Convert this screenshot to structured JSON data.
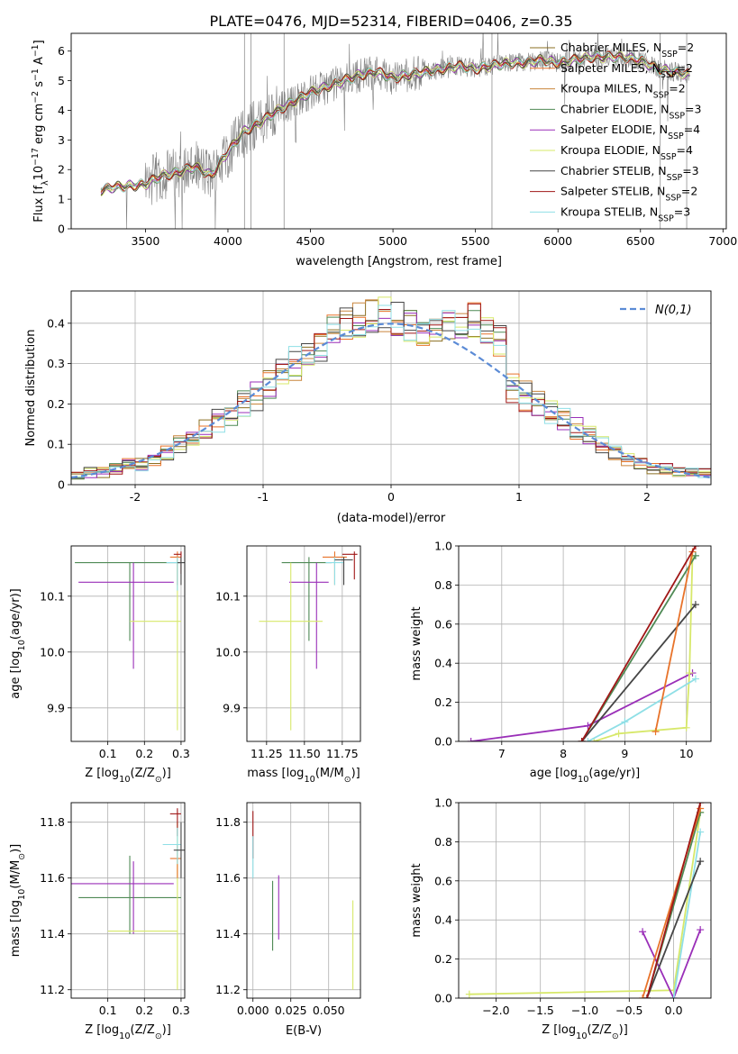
{
  "title": "PLATE=0476, MJD=52314, FIBERID=0406, z=0.35",
  "colors": {
    "c0": "#8b6f22",
    "c1": "#e8732a",
    "c2": "#c9853c",
    "c3": "#4f8a55",
    "c4": "#9a2fb8",
    "c5": "#d7e86a",
    "c6": "#454545",
    "c7": "#a01717",
    "c8": "#8fdfe6",
    "obs": "#808080",
    "normal": "#5b8bd6"
  },
  "chart_data": [
    {
      "type": "line",
      "name": "spectrum",
      "xlabel": "wavelength [Angstrom, rest frame]",
      "ylabel": "Flux [f",
      "xlim": [
        3050,
        7020
      ],
      "ylim": [
        0,
        6.6
      ],
      "xticks": [
        3500,
        4000,
        4500,
        5000,
        5500,
        6000,
        6500,
        7000
      ],
      "yticks": [
        0,
        1,
        2,
        3,
        4,
        5,
        6
      ],
      "legend": [
        {
          "label": "Chabrier MILES, N",
          "n": "2"
        },
        {
          "label": "Salpeter MILES, N",
          "n": "2"
        },
        {
          "label": "Kroupa MILES, N",
          "n": "2"
        },
        {
          "label": "Chabrier ELODIE, N",
          "n": "3"
        },
        {
          "label": "Salpeter ELODIE, N",
          "n": "4"
        },
        {
          "label": "Kroupa ELODIE, N",
          "n": "4"
        },
        {
          "label": "Chabrier STELIB, N",
          "n": "3"
        },
        {
          "label": "Salpeter STELIB, N",
          "n": "2"
        },
        {
          "label": "Kroupa STELIB, N",
          "n": "3"
        }
      ],
      "continuum": {
        "x": [
          3230,
          3300,
          3400,
          3500,
          3600,
          3700,
          3800,
          3900,
          4000,
          4100,
          4200,
          4300,
          4400,
          4500,
          4600,
          4700,
          4800,
          4900,
          5000,
          5100,
          5200,
          5300,
          5400,
          5500,
          5600,
          5700,
          5800,
          5900,
          6000,
          6100,
          6200,
          6300,
          6400,
          6500,
          6600,
          6700,
          6800
        ],
        "y": [
          1.3,
          1.4,
          1.45,
          1.5,
          1.8,
          1.9,
          2.1,
          1.8,
          2.6,
          3.3,
          3.6,
          4.0,
          4.3,
          4.6,
          4.8,
          5.0,
          5.2,
          5.3,
          5.1,
          5.2,
          5.3,
          5.4,
          5.5,
          5.4,
          5.5,
          5.6,
          5.6,
          5.7,
          5.6,
          5.7,
          5.8,
          5.8,
          5.8,
          5.7,
          5.4,
          5.3,
          5.2
        ]
      }
    },
    {
      "type": "step",
      "name": "residuals",
      "xlabel": "(data-model)/error",
      "ylabel": "Normed distribution",
      "xlim": [
        -2.5,
        2.5
      ],
      "ylim": [
        0,
        0.48
      ],
      "xticks": [
        -2,
        -1,
        0,
        1,
        2
      ],
      "yticks": [
        0.0,
        0.1,
        0.2,
        0.3,
        0.4
      ],
      "legend": "N(0,1)",
      "bin_width": 0.1,
      "base": [
        0.02,
        0.03,
        0.03,
        0.04,
        0.05,
        0.05,
        0.06,
        0.08,
        0.1,
        0.12,
        0.14,
        0.16,
        0.18,
        0.2,
        0.22,
        0.25,
        0.27,
        0.3,
        0.32,
        0.35,
        0.38,
        0.4,
        0.41,
        0.42,
        0.42,
        0.41,
        0.4,
        0.38,
        0.38,
        0.39,
        0.4,
        0.41,
        0.38,
        0.35,
        0.24,
        0.22,
        0.2,
        0.18,
        0.16,
        0.14,
        0.12,
        0.1,
        0.08,
        0.06,
        0.05,
        0.04,
        0.04,
        0.03,
        0.03,
        0.03
      ]
    },
    {
      "type": "errorbar",
      "name": "age-vs-Z",
      "xlabel": "Z [log",
      "ylabel": "age  [log",
      "xlim": [
        0.0,
        0.31
      ],
      "ylim": [
        9.84,
        10.19
      ],
      "xticks": [
        0.1,
        0.2,
        0.3
      ],
      "xticklabels": [
        "0.1",
        "0.2",
        "0.3"
      ],
      "yticks": [
        9.9,
        10.0,
        10.1
      ],
      "yticklabels": [
        "9.9",
        "10.0",
        "10.1"
      ],
      "points": [
        {
          "c": "c3",
          "x": 0.16,
          "xe": [
            0.01,
            0.3
          ],
          "y": 10.16,
          "ye": [
            10.02,
            10.16
          ]
        },
        {
          "c": "c4",
          "x": 0.17,
          "xe": [
            0.02,
            0.28
          ],
          "y": 10.125,
          "ye": [
            9.97,
            10.16
          ]
        },
        {
          "c": "c5",
          "x": 0.29,
          "xe": [
            0.16,
            0.3
          ],
          "y": 10.055,
          "ye": [
            9.86,
            10.17
          ]
        },
        {
          "c": "c1",
          "x": 0.29,
          "xe": [
            0.27,
            0.3
          ],
          "y": 10.17,
          "ye": [
            10.12,
            10.18
          ]
        },
        {
          "c": "c7",
          "x": 0.3,
          "xe": [
            0.28,
            0.3
          ],
          "y": 10.175,
          "ye": [
            10.14,
            10.18
          ]
        },
        {
          "c": "c8",
          "x": 0.29,
          "xe": [
            0.26,
            0.3
          ],
          "y": 10.16,
          "ye": [
            10.11,
            10.17
          ]
        },
        {
          "c": "c6",
          "x": 0.3,
          "xe": [
            0.29,
            0.31
          ],
          "y": 10.16,
          "ye": [
            10.12,
            10.17
          ]
        }
      ]
    },
    {
      "type": "errorbar",
      "name": "age-vs-mass",
      "xlabel": "mass [log",
      "ylabel": "",
      "xlim": [
        11.12,
        11.87
      ],
      "ylim": [
        9.84,
        10.19
      ],
      "xticks": [
        11.25,
        11.5,
        11.75
      ],
      "xticklabels": [
        "11.25",
        "11.50",
        "11.75"
      ],
      "yticks": [
        9.9,
        10.0,
        10.1
      ],
      "yticklabels": [
        "9.9",
        "10.0",
        "10.1"
      ],
      "points": [
        {
          "c": "c3",
          "x": 11.53,
          "xe": [
            11.35,
            11.68
          ],
          "y": 10.16,
          "ye": [
            10.02,
            10.17
          ]
        },
        {
          "c": "c4",
          "x": 11.58,
          "xe": [
            11.4,
            11.66
          ],
          "y": 10.125,
          "ye": [
            9.97,
            10.16
          ]
        },
        {
          "c": "c5",
          "x": 11.41,
          "xe": [
            11.2,
            11.62
          ],
          "y": 10.055,
          "ye": [
            9.86,
            10.16
          ]
        },
        {
          "c": "c1",
          "x": 11.7,
          "xe": [
            11.62,
            11.78
          ],
          "y": 10.17,
          "ye": [
            10.12,
            10.18
          ]
        },
        {
          "c": "c7",
          "x": 11.83,
          "xe": [
            11.75,
            11.85
          ],
          "y": 10.175,
          "ye": [
            10.13,
            10.18
          ]
        },
        {
          "c": "c8",
          "x": 11.7,
          "xe": [
            11.64,
            11.76
          ],
          "y": 10.16,
          "ye": [
            10.12,
            10.17
          ]
        },
        {
          "c": "c6",
          "x": 11.76,
          "xe": [
            11.7,
            11.82
          ],
          "y": 10.165,
          "ye": [
            10.12,
            10.17
          ]
        }
      ]
    },
    {
      "type": "line",
      "name": "mass-weight-vs-age",
      "xlabel": "age  [log",
      "ylabel": "mass weight",
      "xlim": [
        6.3,
        10.4
      ],
      "ylim": [
        0,
        1
      ],
      "xticks": [
        7,
        8,
        9,
        10
      ],
      "xticklabels": [
        "7",
        "8",
        "9",
        "10"
      ],
      "yticks": [
        0,
        0.2,
        0.4,
        0.6,
        0.8,
        1.0
      ],
      "yticklabels": [
        "0.0",
        "0.2",
        "0.4",
        "0.6",
        "0.8",
        "1.0"
      ],
      "series": [
        {
          "c": "c4",
          "x": [
            6.5,
            8.4,
            10.1
          ],
          "y": [
            0.0,
            0.08,
            0.35
          ]
        },
        {
          "c": "c5",
          "x": [
            8.5,
            8.9,
            10.0,
            10.05,
            10.1
          ],
          "y": [
            0.0,
            0.04,
            0.07,
            0.35,
            0.95
          ]
        },
        {
          "c": "c8",
          "x": [
            8.4,
            9.0,
            10.15
          ],
          "y": [
            0.0,
            0.1,
            0.32
          ]
        },
        {
          "c": "c3",
          "x": [
            8.3,
            10.15
          ],
          "y": [
            0.0,
            0.95
          ]
        },
        {
          "c": "c6",
          "x": [
            8.3,
            10.15
          ],
          "y": [
            0.0,
            0.7
          ]
        },
        {
          "c": "c1",
          "x": [
            9.5,
            10.1
          ],
          "y": [
            0.05,
            0.97
          ]
        },
        {
          "c": "c7",
          "x": [
            8.3,
            10.15
          ],
          "y": [
            0.0,
            1.0
          ]
        }
      ]
    },
    {
      "type": "errorbar",
      "name": "mass-vs-Z",
      "xlabel": "Z [log",
      "ylabel": "mass [log",
      "xlim": [
        0.0,
        0.31
      ],
      "ylim": [
        11.17,
        11.87
      ],
      "xticks": [
        0.1,
        0.2,
        0.3
      ],
      "xticklabels": [
        "0.1",
        "0.2",
        "0.3"
      ],
      "yticks": [
        11.2,
        11.4,
        11.6,
        11.8
      ],
      "yticklabels": [
        "11.2",
        "11.4",
        "11.6",
        "11.8"
      ],
      "points": [
        {
          "c": "c3",
          "x": 0.16,
          "xe": [
            0.02,
            0.3
          ],
          "y": 11.53,
          "ye": [
            11.4,
            11.68
          ]
        },
        {
          "c": "c4",
          "x": 0.17,
          "xe": [
            0.0,
            0.28
          ],
          "y": 11.58,
          "ye": [
            11.4,
            11.66
          ]
        },
        {
          "c": "c5",
          "x": 0.29,
          "xe": [
            0.1,
            0.29
          ],
          "y": 11.41,
          "ye": [
            11.2,
            11.8
          ]
        },
        {
          "c": "c1",
          "x": 0.29,
          "xe": [
            0.27,
            0.3
          ],
          "y": 11.67,
          "ye": [
            11.6,
            11.72
          ]
        },
        {
          "c": "c7",
          "x": 0.29,
          "xe": [
            0.27,
            0.3
          ],
          "y": 11.83,
          "ye": [
            11.75,
            11.85
          ]
        },
        {
          "c": "c8",
          "x": 0.29,
          "xe": [
            0.25,
            0.3
          ],
          "y": 11.72,
          "ye": [
            11.65,
            11.78
          ]
        },
        {
          "c": "c6",
          "x": 0.3,
          "xe": [
            0.28,
            0.31
          ],
          "y": 11.7,
          "ye": [
            11.6,
            11.8
          ]
        }
      ]
    },
    {
      "type": "errorbar",
      "name": "mass-vs-EBV",
      "xlabel": "E(B-V)",
      "ylabel": "",
      "xlim": [
        -0.004,
        0.071
      ],
      "ylim": [
        11.17,
        11.87
      ],
      "xticks": [
        0.0,
        0.025,
        0.05
      ],
      "xticklabels": [
        "0.000",
        "0.025",
        "0.050"
      ],
      "yticks": [
        11.2,
        11.4,
        11.6,
        11.8
      ],
      "yticklabels": [
        "11.2",
        "11.4",
        "11.6",
        "11.8"
      ],
      "points": [
        {
          "c": "c7",
          "x": 0.0,
          "y": 11.75,
          "ye": [
            11.67,
            11.84
          ]
        },
        {
          "c": "c8",
          "x": 0.0,
          "y": 11.68,
          "ye": [
            11.6,
            11.75
          ]
        },
        {
          "c": "c3",
          "x": 0.013,
          "y": 11.47,
          "ye": [
            11.34,
            11.59
          ]
        },
        {
          "c": "c4",
          "x": 0.017,
          "y": 11.5,
          "ye": [
            11.38,
            11.61
          ]
        },
        {
          "c": "c5",
          "x": 0.066,
          "y": 11.36,
          "ye": [
            11.2,
            11.52
          ]
        }
      ]
    },
    {
      "type": "line",
      "name": "mass-weight-vs-Z",
      "xlabel": "Z [log",
      "ylabel": "mass weight",
      "xlim": [
        -2.42,
        0.42
      ],
      "ylim": [
        0,
        1
      ],
      "xticks": [
        -2.0,
        -1.5,
        -1.0,
        -0.5,
        0.0
      ],
      "xticklabels": [
        "−2.0",
        "−1.5",
        "−1.0",
        "−0.5",
        "0.0"
      ],
      "yticks": [
        0,
        0.2,
        0.4,
        0.6,
        0.8,
        1.0
      ],
      "yticklabels": [
        "0.0",
        "0.2",
        "0.4",
        "0.6",
        "0.8",
        "1.0"
      ],
      "series": [
        {
          "c": "c5",
          "x": [
            -2.3,
            0.0,
            0.3
          ],
          "y": [
            0.02,
            0.04,
            0.95
          ]
        },
        {
          "c": "c4",
          "x": [
            -0.35,
            0.0,
            0.3
          ],
          "y": [
            0.34,
            0.0,
            0.35
          ]
        },
        {
          "c": "c8",
          "x": [
            0.0,
            0.3
          ],
          "y": [
            0.0,
            0.85
          ]
        },
        {
          "c": "c3",
          "x": [
            -0.3,
            0.3
          ],
          "y": [
            0.0,
            0.95
          ]
        },
        {
          "c": "c6",
          "x": [
            -0.3,
            0.3
          ],
          "y": [
            0.0,
            0.7
          ]
        },
        {
          "c": "c1",
          "x": [
            -0.35,
            0.3
          ],
          "y": [
            0.0,
            0.97
          ]
        },
        {
          "c": "c7",
          "x": [
            -0.3,
            0.3
          ],
          "y": [
            0.0,
            1.0
          ]
        }
      ]
    }
  ]
}
